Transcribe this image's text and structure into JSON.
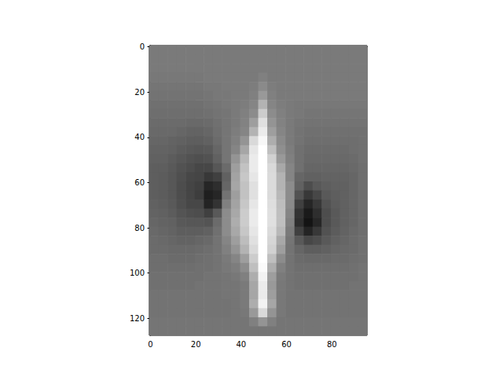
{
  "chart_data": {
    "type": "image",
    "color": "gray",
    "vmin": 0,
    "vmax": 100,
    "xlim": [
      -0.5,
      95.5
    ],
    "ylim": [
      127.5,
      -0.5
    ],
    "xticks": [
      0,
      20,
      40,
      60,
      80
    ],
    "yticks": [
      0,
      20,
      40,
      60,
      80,
      100,
      120
    ],
    "cells": [
      [
        48,
        48,
        48,
        48,
        48,
        48,
        48,
        48,
        48,
        48,
        48,
        48,
        48,
        48,
        48,
        48,
        48,
        48,
        48,
        48,
        48,
        48,
        48,
        48
      ],
      [
        48,
        48,
        48,
        48,
        48,
        48,
        48,
        48,
        48,
        48,
        48,
        48,
        48,
        48,
        48,
        48,
        48,
        48,
        48,
        48,
        48,
        48,
        48,
        48
      ],
      [
        48,
        48,
        48,
        48,
        48,
        48,
        48,
        48,
        48,
        48,
        48,
        48,
        48,
        48,
        48,
        48,
        48,
        48,
        48,
        48,
        48,
        48,
        48,
        48
      ],
      [
        47,
        47,
        47,
        47,
        47,
        47,
        48,
        48,
        48,
        48,
        48,
        48,
        50,
        48,
        48,
        48,
        48,
        48,
        48,
        48,
        48,
        48,
        48,
        48
      ],
      [
        46,
        46,
        46,
        46,
        46,
        46,
        47,
        47,
        48,
        48,
        48,
        49,
        54,
        49,
        48,
        48,
        48,
        48,
        48,
        48,
        48,
        48,
        48,
        48
      ],
      [
        45,
        45,
        45,
        45,
        45,
        45,
        46,
        47,
        47,
        48,
        48,
        50,
        60,
        50,
        48,
        48,
        48,
        48,
        48,
        48,
        48,
        48,
        48,
        48
      ],
      [
        44,
        44,
        44,
        44,
        44,
        44,
        45,
        46,
        47,
        48,
        49,
        52,
        70,
        52,
        49,
        48,
        47,
        47,
        47,
        47,
        47,
        47,
        47,
        47
      ],
      [
        43,
        43,
        43,
        43,
        43,
        43,
        44,
        45,
        46,
        48,
        50,
        55,
        80,
        55,
        50,
        48,
        47,
        46,
        46,
        46,
        46,
        46,
        46,
        46
      ],
      [
        42,
        42,
        42,
        42,
        41,
        41,
        42,
        44,
        46,
        48,
        51,
        62,
        88,
        58,
        51,
        48,
        46,
        45,
        45,
        45,
        45,
        45,
        45,
        45
      ],
      [
        41,
        41,
        41,
        40,
        39,
        39,
        40,
        43,
        46,
        49,
        52,
        70,
        92,
        62,
        52,
        48,
        45,
        44,
        44,
        44,
        44,
        44,
        44,
        44
      ],
      [
        40,
        40,
        39,
        38,
        37,
        37,
        38,
        42,
        46,
        50,
        58,
        85,
        97,
        68,
        54,
        48,
        45,
        43,
        43,
        43,
        43,
        43,
        43,
        44
      ],
      [
        39,
        39,
        38,
        36,
        35,
        34,
        35,
        40,
        46,
        52,
        65,
        90,
        100,
        75,
        56,
        49,
        44,
        42,
        42,
        42,
        42,
        42,
        43,
        44
      ],
      [
        38,
        38,
        36,
        34,
        32,
        31,
        32,
        38,
        46,
        58,
        72,
        92,
        100,
        82,
        60,
        50,
        44,
        41,
        41,
        41,
        41,
        41,
        42,
        44
      ],
      [
        37,
        37,
        35,
        32,
        30,
        28,
        28,
        34,
        42,
        62,
        76,
        92,
        100,
        85,
        66,
        52,
        44,
        40,
        40,
        40,
        40,
        40,
        41,
        43
      ],
      [
        37,
        36,
        34,
        31,
        28,
        27,
        22,
        25,
        38,
        64,
        78,
        90,
        100,
        86,
        70,
        52,
        40,
        38,
        38,
        39,
        39,
        39,
        40,
        43
      ],
      [
        37,
        36,
        34,
        30,
        27,
        25,
        15,
        18,
        40,
        65,
        76,
        88,
        100,
        86,
        70,
        55,
        38,
        30,
        35,
        37,
        38,
        38,
        40,
        43
      ],
      [
        37,
        36,
        34,
        30,
        27,
        24,
        12,
        15,
        45,
        62,
        76,
        88,
        100,
        86,
        72,
        55,
        32,
        22,
        28,
        35,
        37,
        38,
        40,
        43
      ],
      [
        38,
        37,
        35,
        31,
        28,
        28,
        14,
        20,
        50,
        64,
        78,
        90,
        100,
        87,
        74,
        54,
        25,
        15,
        22,
        32,
        36,
        38,
        40,
        43
      ],
      [
        39,
        38,
        36,
        33,
        31,
        30,
        25,
        35,
        55,
        66,
        80,
        92,
        100,
        88,
        75,
        52,
        20,
        10,
        18,
        30,
        35,
        38,
        40,
        43
      ],
      [
        40,
        39,
        38,
        35,
        34,
        34,
        33,
        42,
        55,
        68,
        80,
        92,
        100,
        88,
        75,
        50,
        18,
        8,
        15,
        30,
        35,
        38,
        40,
        43
      ],
      [
        41,
        40,
        39,
        37,
        37,
        37,
        38,
        44,
        55,
        66,
        78,
        90,
        100,
        86,
        72,
        48,
        25,
        14,
        22,
        32,
        36,
        39,
        41,
        43
      ],
      [
        42,
        41,
        40,
        39,
        39,
        40,
        41,
        45,
        52,
        62,
        74,
        88,
        100,
        84,
        66,
        46,
        35,
        28,
        30,
        35,
        38,
        40,
        42,
        44
      ],
      [
        42,
        42,
        41,
        41,
        41,
        42,
        43,
        45,
        50,
        58,
        70,
        85,
        100,
        82,
        62,
        45,
        40,
        37,
        37,
        38,
        40,
        41,
        42,
        44
      ],
      [
        43,
        43,
        42,
        42,
        42,
        43,
        44,
        45,
        48,
        52,
        62,
        80,
        100,
        75,
        55,
        45,
        42,
        41,
        41,
        41,
        42,
        42,
        43,
        44
      ],
      [
        43,
        43,
        43,
        43,
        43,
        44,
        44,
        45,
        47,
        49,
        55,
        75,
        98,
        68,
        50,
        45,
        43,
        43,
        43,
        43,
        43,
        43,
        44,
        45
      ],
      [
        44,
        44,
        44,
        44,
        44,
        44,
        45,
        45,
        46,
        47,
        50,
        68,
        95,
        62,
        48,
        45,
        44,
        44,
        44,
        44,
        44,
        44,
        44,
        45
      ],
      [
        44,
        44,
        44,
        44,
        44,
        45,
        45,
        45,
        46,
        46,
        48,
        65,
        92,
        60,
        47,
        45,
        44,
        44,
        44,
        44,
        44,
        44,
        45,
        45
      ],
      [
        45,
        45,
        45,
        45,
        45,
        45,
        45,
        45,
        46,
        46,
        48,
        65,
        92,
        62,
        47,
        45,
        45,
        45,
        45,
        45,
        45,
        45,
        45,
        45
      ],
      [
        45,
        45,
        45,
        45,
        45,
        45,
        45,
        45,
        45,
        46,
        48,
        68,
        95,
        65,
        47,
        45,
        45,
        45,
        45,
        45,
        45,
        45,
        45,
        45
      ],
      [
        45,
        45,
        45,
        45,
        45,
        45,
        45,
        45,
        45,
        46,
        47,
        60,
        85,
        58,
        47,
        45,
        45,
        45,
        45,
        45,
        45,
        45,
        45,
        45
      ],
      [
        46,
        46,
        46,
        46,
        46,
        46,
        46,
        46,
        46,
        46,
        46,
        50,
        58,
        50,
        46,
        46,
        46,
        46,
        46,
        46,
        46,
        46,
        46,
        46
      ],
      [
        46,
        46,
        46,
        46,
        46,
        46,
        46,
        46,
        46,
        46,
        46,
        46,
        46,
        46,
        46,
        46,
        46,
        46,
        46,
        46,
        46,
        46,
        46,
        46
      ]
    ]
  }
}
